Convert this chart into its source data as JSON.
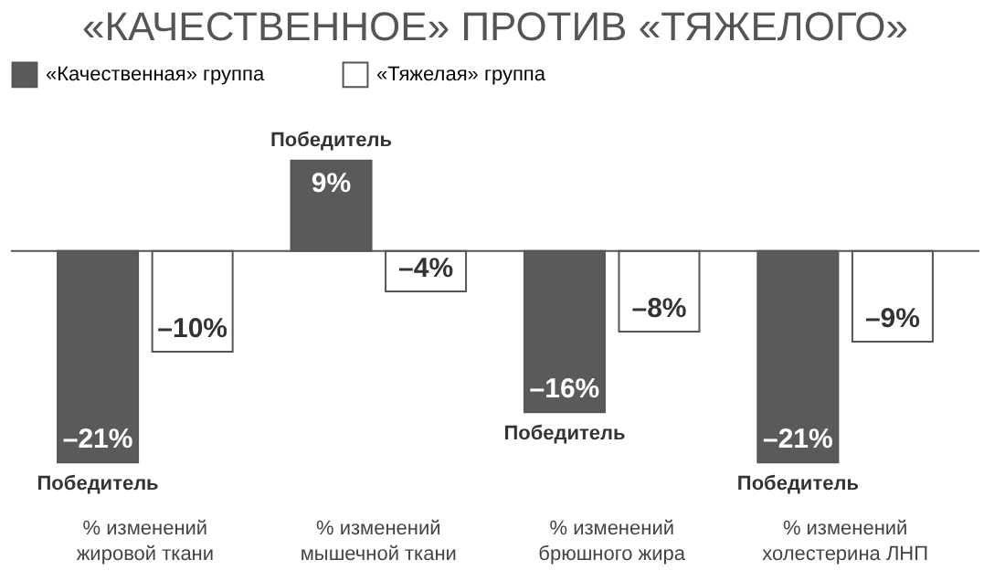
{
  "chart_data": {
    "type": "bar",
    "title": "«КАЧЕСТВЕННОЕ» ПРОТИВ «ТЯЖЕЛОГО»",
    "categories": [
      "% изменений\nжировой ткани",
      "% изменений\nмышечной ткани",
      "% изменений\nбрюшного жира",
      "% изменений\nхолестерина ЛНП"
    ],
    "series": [
      {
        "name": "«Качественная» группа",
        "color": "#5a5a5a",
        "values": [
          -21,
          9,
          -16,
          -21
        ],
        "value_labels": [
          "–21%",
          "9%",
          "–16%",
          "–21%"
        ]
      },
      {
        "name": "«Тяжелая» группа",
        "color": "#ffffff",
        "values": [
          -10,
          -4,
          -8,
          -9
        ],
        "value_labels": [
          "–10%",
          "–4%",
          "–8%",
          "–9%"
        ]
      }
    ],
    "legend": "top",
    "annotations": [
      "Победитель",
      "Победитель",
      "Победитель",
      "Победитель"
    ]
  }
}
